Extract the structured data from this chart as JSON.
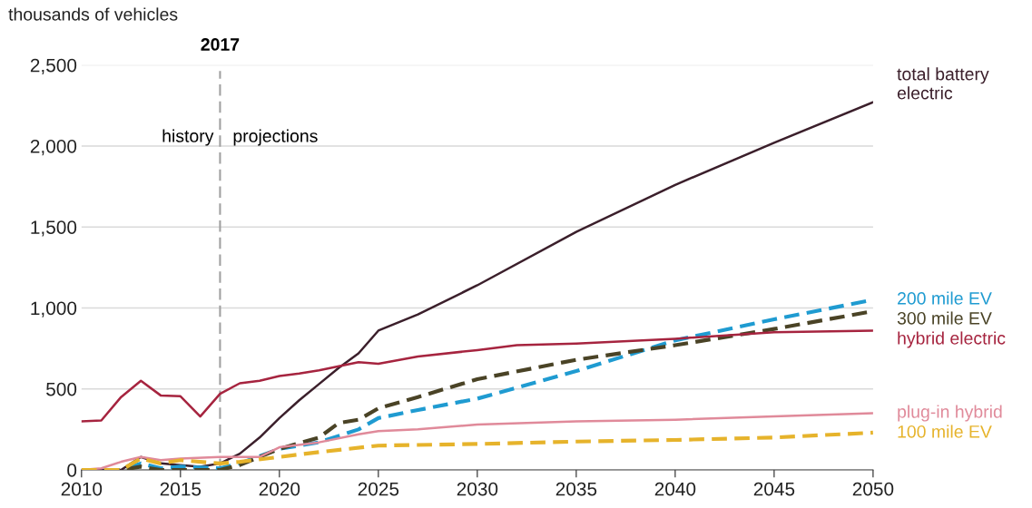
{
  "chart_data": {
    "type": "line",
    "ylabel": "thousands of vehicles",
    "xlim": [
      2010,
      2050
    ],
    "xticks": [
      2010,
      2015,
      2020,
      2025,
      2030,
      2035,
      2040,
      2045,
      2050
    ],
    "ylim": [
      0,
      2500
    ],
    "yticks": [
      0,
      {
        "value": 500,
        "label": "500"
      },
      {
        "value": 1000,
        "label": "1,000"
      },
      {
        "value": 1500,
        "label": "1,500"
      },
      {
        "value": 2000,
        "label": "2,000"
      },
      {
        "value": 2500,
        "label": "2,500"
      }
    ],
    "grid": "y",
    "legend": false,
    "ref_lines": [
      {
        "axis": "x",
        "value": 2017,
        "label": "2017",
        "color": "#a0a0a0",
        "line_style": "dashed"
      }
    ],
    "annotations": [
      "history",
      "projections"
    ],
    "series": [
      {
        "name": "total battery\nelectric",
        "color": "#3b1f2b",
        "line_style": "solid",
        "x": [
          2010,
          2012,
          2013,
          2014,
          2015,
          2016,
          2017,
          2018,
          2019,
          2020,
          2021,
          2022,
          2023,
          2024,
          2025,
          2027,
          2030,
          2035,
          2040,
          2045,
          2050
        ],
        "values": [
          0,
          0,
          80,
          40,
          30,
          20,
          40,
          100,
          200,
          320,
          430,
          530,
          630,
          720,
          860,
          960,
          1140,
          1470,
          1760,
          2020,
          2270
        ]
      },
      {
        "name": "200 mile EV",
        "color": "#1f9bd1",
        "line_style": "dashed",
        "x": [
          2010,
          2012,
          2013,
          2014,
          2015,
          2017,
          2018,
          2020,
          2022,
          2024,
          2025,
          2027,
          2030,
          2035,
          2040,
          2045,
          2050
        ],
        "values": [
          0,
          0,
          40,
          10,
          20,
          10,
          40,
          130,
          170,
          250,
          320,
          370,
          440,
          610,
          800,
          930,
          1050
        ]
      },
      {
        "name": "300 mile EV",
        "color": "#4a4326",
        "line_style": "dashed",
        "x": [
          2010,
          2012,
          2013,
          2014,
          2017,
          2018,
          2020,
          2022,
          2023,
          2024,
          2025,
          2027,
          2030,
          2035,
          2040,
          2045,
          2050
        ],
        "values": [
          0,
          0,
          20,
          0,
          0,
          30,
          130,
          200,
          290,
          310,
          380,
          450,
          560,
          680,
          770,
          870,
          980
        ]
      },
      {
        "name": "hybrid electric",
        "color": "#a6243f",
        "line_style": "solid",
        "x": [
          2010,
          2011,
          2012,
          2013,
          2014,
          2015,
          2016,
          2017,
          2018,
          2019,
          2020,
          2021,
          2022,
          2023,
          2024,
          2025,
          2027,
          2030,
          2032,
          2035,
          2040,
          2045,
          2050
        ],
        "values": [
          300,
          305,
          450,
          550,
          460,
          455,
          330,
          470,
          535,
          550,
          580,
          595,
          615,
          640,
          665,
          655,
          700,
          740,
          770,
          780,
          810,
          850,
          860
        ]
      },
      {
        "name": "plug-in hybrid",
        "color": "#e08a9a",
        "line_style": "solid",
        "x": [
          2010,
          2011,
          2012,
          2013,
          2014,
          2015,
          2017,
          2019,
          2020,
          2022,
          2024,
          2025,
          2027,
          2030,
          2035,
          2040,
          2045,
          2050
        ],
        "values": [
          0,
          10,
          50,
          80,
          60,
          70,
          80,
          80,
          140,
          170,
          220,
          240,
          250,
          280,
          300,
          310,
          330,
          350
        ]
      },
      {
        "name": "100 mile EV",
        "color": "#e6b32b",
        "line_style": "dashed",
        "x": [
          2010,
          2012,
          2013,
          2014,
          2015,
          2017,
          2018,
          2020,
          2022,
          2025,
          2030,
          2035,
          2040,
          2045,
          2050
        ],
        "values": [
          0,
          0,
          70,
          40,
          60,
          40,
          50,
          80,
          110,
          150,
          160,
          175,
          185,
          200,
          230
        ]
      }
    ]
  }
}
